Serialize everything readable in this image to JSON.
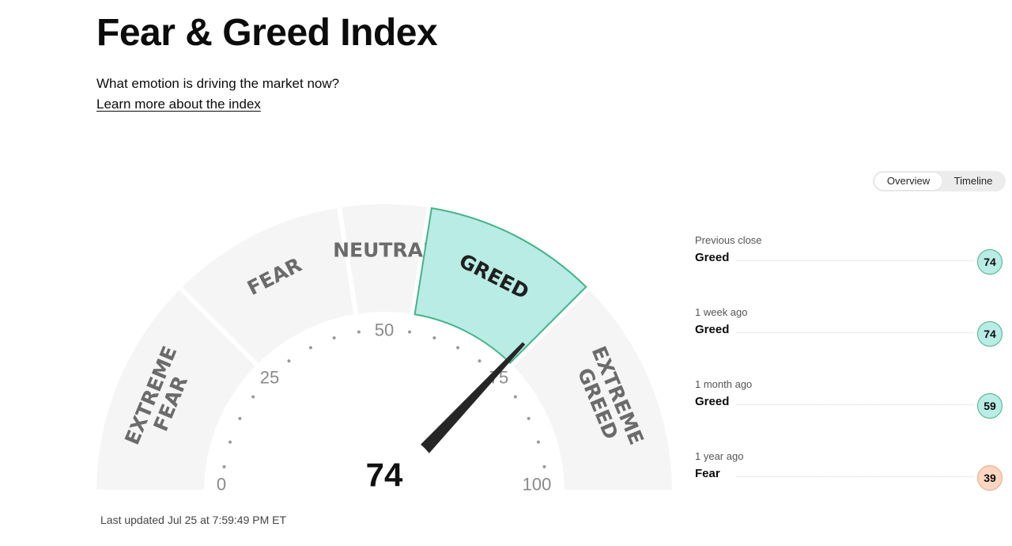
{
  "header": {
    "title": "Fear & Greed Index",
    "question": "What emotion is driving the market now?",
    "learn_more": "Learn more about the index"
  },
  "view_toggle": {
    "options": [
      "Overview",
      "Timeline"
    ],
    "selected": "Overview"
  },
  "gauge": {
    "value": 74,
    "value_label": "74",
    "rating": "Greed",
    "scale_min": 0,
    "scale_max": 100,
    "ticks": [
      "0",
      "25",
      "50",
      "75",
      "100"
    ],
    "segments": [
      {
        "lines": [
          "EXTREME",
          "FEAR"
        ],
        "from": 0,
        "to": 25,
        "active": false
      },
      {
        "lines": [
          "FEAR"
        ],
        "from": 25,
        "to": 45,
        "active": false
      },
      {
        "lines": [
          "NEUTRAL"
        ],
        "from": 45,
        "to": 55,
        "active": false
      },
      {
        "lines": [
          "GREED"
        ],
        "from": 55,
        "to": 75,
        "active": true
      },
      {
        "lines": [
          "EXTREME",
          "GREED"
        ],
        "from": 75,
        "to": 100,
        "active": false
      }
    ],
    "colors": {
      "segment": "#f5f5f5",
      "active_fill": "#b8ece5",
      "active_stroke": "#44b487",
      "needle": "#262626"
    }
  },
  "history": [
    {
      "when": "Previous close",
      "label": "Greed",
      "value": "74",
      "tone": "greed"
    },
    {
      "when": "1 week ago",
      "label": "Greed",
      "value": "74",
      "tone": "greed"
    },
    {
      "when": "1 month ago",
      "label": "Greed",
      "value": "59",
      "tone": "greed"
    },
    {
      "when": "1 year ago",
      "label": "Fear",
      "value": "39",
      "tone": "fear"
    }
  ],
  "footer": {
    "last_updated": "Last updated Jul 25 at 7:59:49 PM ET"
  }
}
